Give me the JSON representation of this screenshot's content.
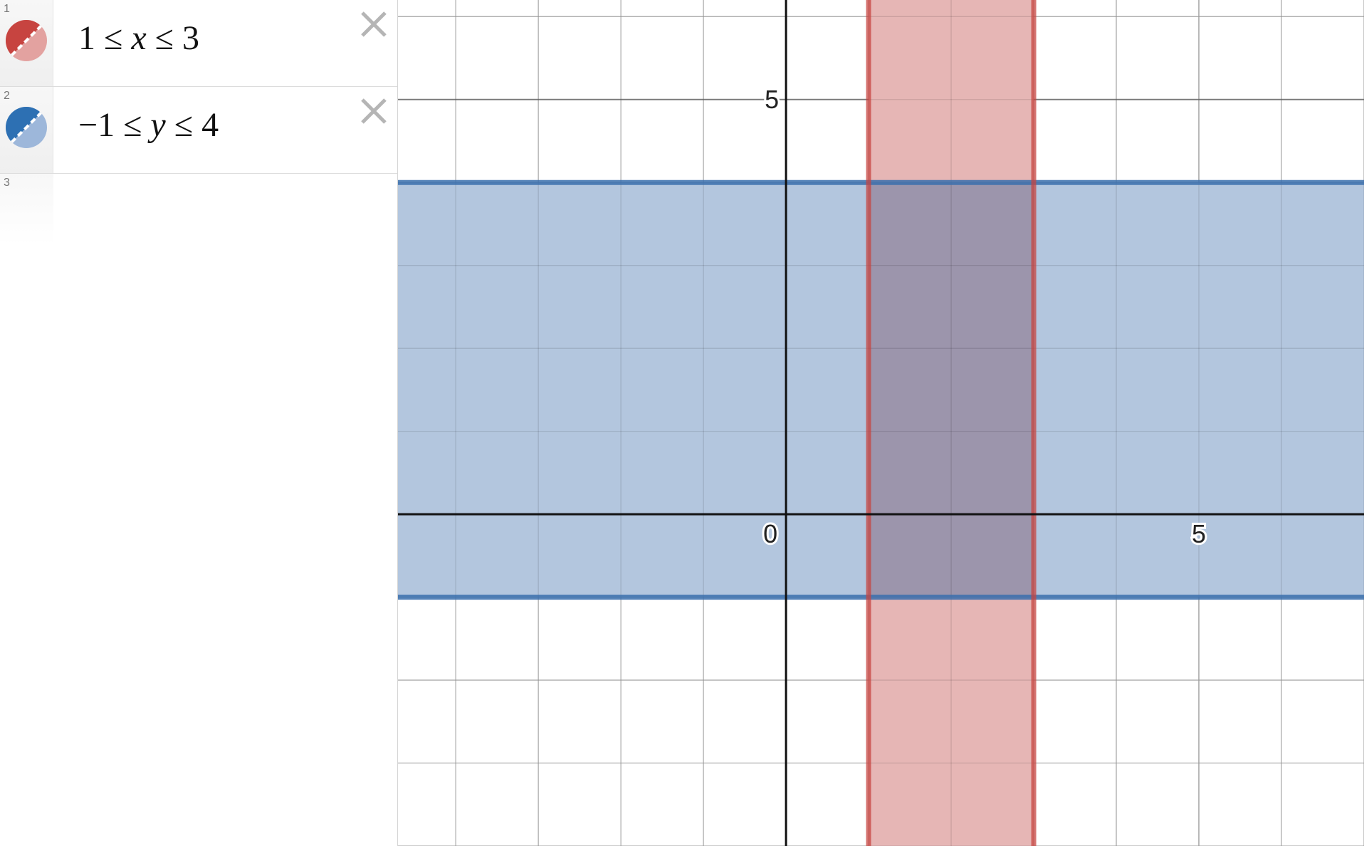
{
  "expressions": [
    {
      "num": "1",
      "lower": "1",
      "op1": "≤",
      "var": "x",
      "op2": "≤",
      "upper": "3",
      "color": "#c74440"
    },
    {
      "num": "2",
      "lower": "−1",
      "op1": "≤",
      "var": "y",
      "op2": "≤",
      "upper": "4",
      "color": "#2d70b3"
    },
    {
      "num": "3"
    }
  ],
  "icons": {
    "delete": "close-icon",
    "style": "inequality-style-icon"
  },
  "colors": {
    "red_fill": "#e6b6b5",
    "blue_fill": "#b3c6de",
    "overlap_fill": "#9c95ac",
    "red_line": "#c74440",
    "blue_line": "#3a6fad"
  },
  "graph": {
    "x_range": [
      -4.7,
      7
    ],
    "y_range": [
      -4,
      6.2
    ],
    "x_tick_labels": [
      "0",
      "5"
    ],
    "y_tick_labels": [
      "5"
    ],
    "origin_label": "0"
  },
  "regions": [
    {
      "variable": "x",
      "min": 1,
      "max": 3,
      "color": "#c74440"
    },
    {
      "variable": "y",
      "min": -1,
      "max": 4,
      "color": "#2d70b3"
    }
  ]
}
